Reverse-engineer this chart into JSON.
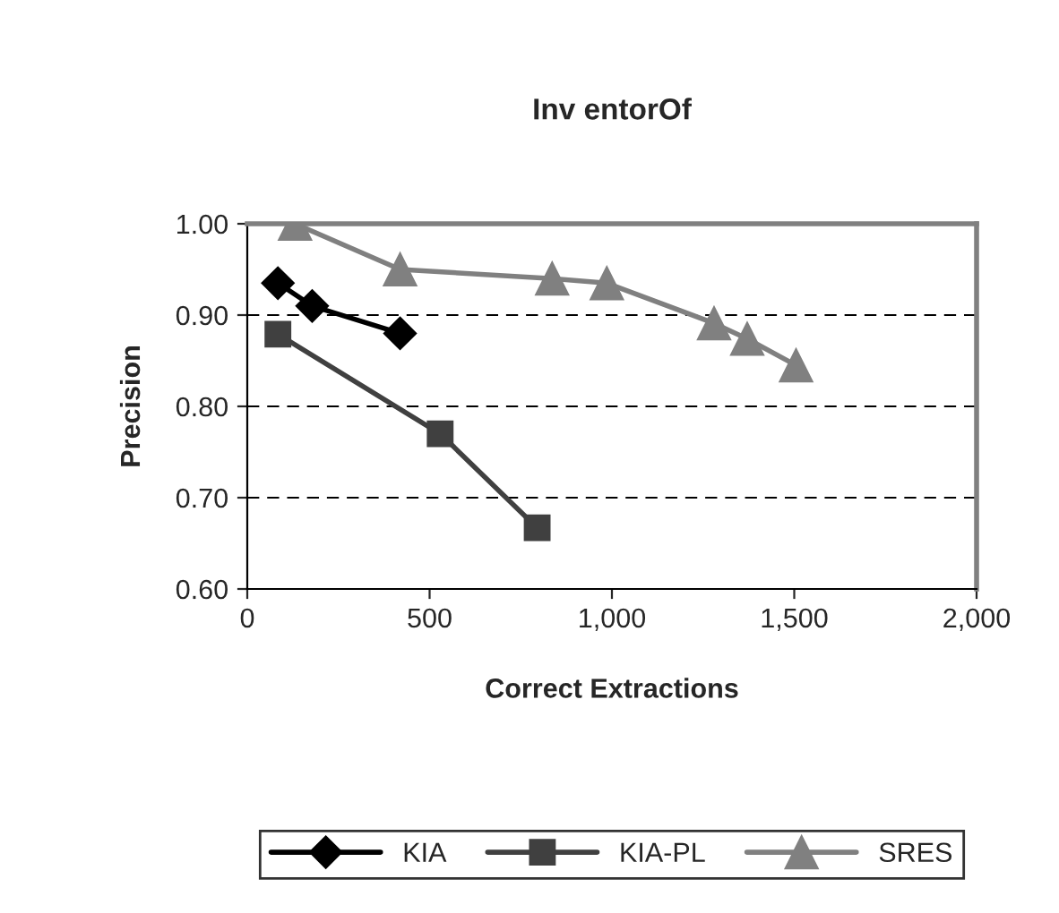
{
  "chart_data": {
    "type": "line",
    "title": "Inv entorOf",
    "xlabel": "Correct Extractions",
    "ylabel": "Precision",
    "series": [
      {
        "name": "KIA",
        "color": "#000000",
        "marker": "diamond",
        "x": [
          84,
          178,
          419
        ],
        "values": [
          0.935,
          0.91,
          0.88
        ]
      },
      {
        "name": "KIA-PL",
        "color": "#404040",
        "marker": "square",
        "x": [
          84,
          529,
          795
        ],
        "values": [
          0.879,
          0.77,
          0.667
        ]
      },
      {
        "name": "SRES",
        "color": "#808080",
        "marker": "triangle",
        "x": [
          131,
          419,
          836,
          986,
          1280,
          1371,
          1505
        ],
        "values": [
          1.0,
          0.95,
          0.94,
          0.935,
          0.891,
          0.874,
          0.845
        ]
      }
    ],
    "xlim": [
      0,
      2000
    ],
    "xticks": [
      {
        "value": 0,
        "label": "0"
      },
      {
        "value": 500,
        "label": "500"
      },
      {
        "value": 1000,
        "label": "1,000"
      },
      {
        "value": 1500,
        "label": "1,500"
      },
      {
        "value": 2000,
        "label": "2,000"
      }
    ],
    "ylim": [
      0.6,
      1.0
    ],
    "yticks": [
      {
        "value": 0.6,
        "label": "0.60"
      },
      {
        "value": 0.7,
        "label": "0.70"
      },
      {
        "value": 0.8,
        "label": "0.80"
      },
      {
        "value": 0.9,
        "label": "0.90"
      },
      {
        "value": 1.0,
        "label": "1.00"
      }
    ],
    "grid": "y",
    "line_style": "solid",
    "legend": "bottom"
  }
}
